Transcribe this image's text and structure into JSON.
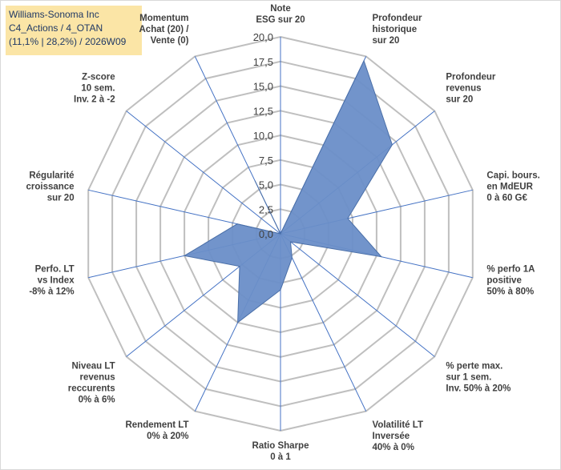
{
  "title_box": {
    "line1": "Williams-Sonoma Inc",
    "line2": "C4_Actions / 4_OTAN",
    "line3": "(11,1% | 28,2%) / 2026W09"
  },
  "chart_data": {
    "type": "radar",
    "r_range": [
      0,
      20
    ],
    "r_ticks": [
      "0,0",
      "2,5",
      "5,0",
      "7,5",
      "10,0",
      "12,5",
      "15,0",
      "17,5",
      "20,0"
    ],
    "axes": [
      {
        "label": [
          "Note",
          "ESG sur 20"
        ],
        "value": 0
      },
      {
        "label": [
          "Profondeur",
          "historique",
          "sur 20"
        ],
        "value": 19.5
      },
      {
        "label": [
          "Profondeur",
          "revenus",
          "sur 20"
        ],
        "value": 14.5
      },
      {
        "label": [
          "Capi. bours.",
          "en MdEUR",
          "0 à 60 G€"
        ],
        "value": 7.0
      },
      {
        "label": [
          "% perfo 1A",
          "positive",
          "50% à 80%"
        ],
        "value": 10.5
      },
      {
        "label": [
          "% perte max.",
          "sur 1 sem.",
          "Inv. 50% à 20%"
        ],
        "value": 1.3
      },
      {
        "label": [
          "Volatilité LT",
          "Inversée",
          "40% à 0%"
        ],
        "value": 2.7
      },
      {
        "label": [
          "Ratio Sharpe",
          "0 à 1"
        ],
        "value": 5.7
      },
      {
        "label": [
          "Rendement LT",
          "0% à 20%"
        ],
        "value": 10.0
      },
      {
        "label": [
          "Niveau LT",
          "revenus",
          "reccurents",
          "0% à 6%"
        ],
        "value": 5.3
      },
      {
        "label": [
          "Perfo. LT",
          "vs Index",
          "-8% à 12%"
        ],
        "value": 10.0
      },
      {
        "label": [
          "Régularité",
          "croissance",
          "sur 20"
        ],
        "value": 4.5
      },
      {
        "label": [
          "Z-score",
          "10 sem.",
          "Inv. 2 à -2"
        ],
        "value": 0
      },
      {
        "label": [
          "Momentum",
          "Achat (20) /",
          "Vente (0)"
        ],
        "value": 6.0
      }
    ],
    "colors": {
      "fill": "#6a8ec8",
      "stroke": "#4a6fa8",
      "grid": "#bfbfbf",
      "axis": "#4472c4",
      "text": "#404040"
    }
  }
}
